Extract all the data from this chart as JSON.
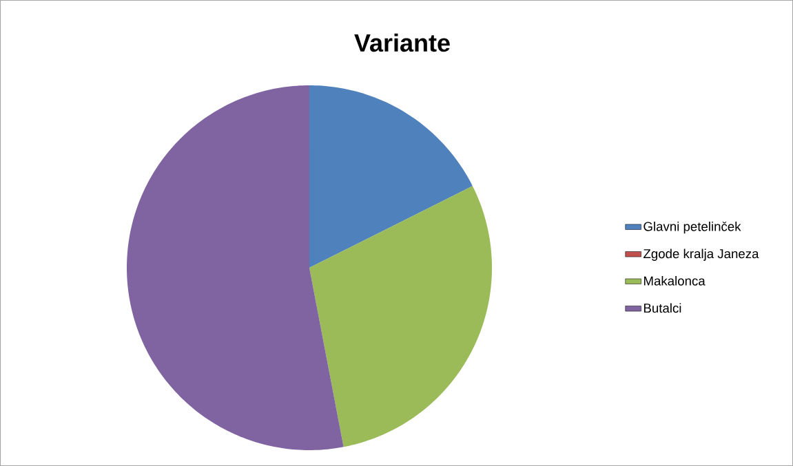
{
  "chart_data": {
    "type": "pie",
    "title": "Variante",
    "categories": [
      "Glavni petelinček",
      "Zgode kralja Janeza",
      "Makalonca",
      "Butalci"
    ],
    "values": [
      17.6,
      0,
      29.4,
      53
    ],
    "colors": [
      "#4f81bd",
      "#c0504d",
      "#9bbb59",
      "#8064a2"
    ],
    "legend": "right"
  }
}
